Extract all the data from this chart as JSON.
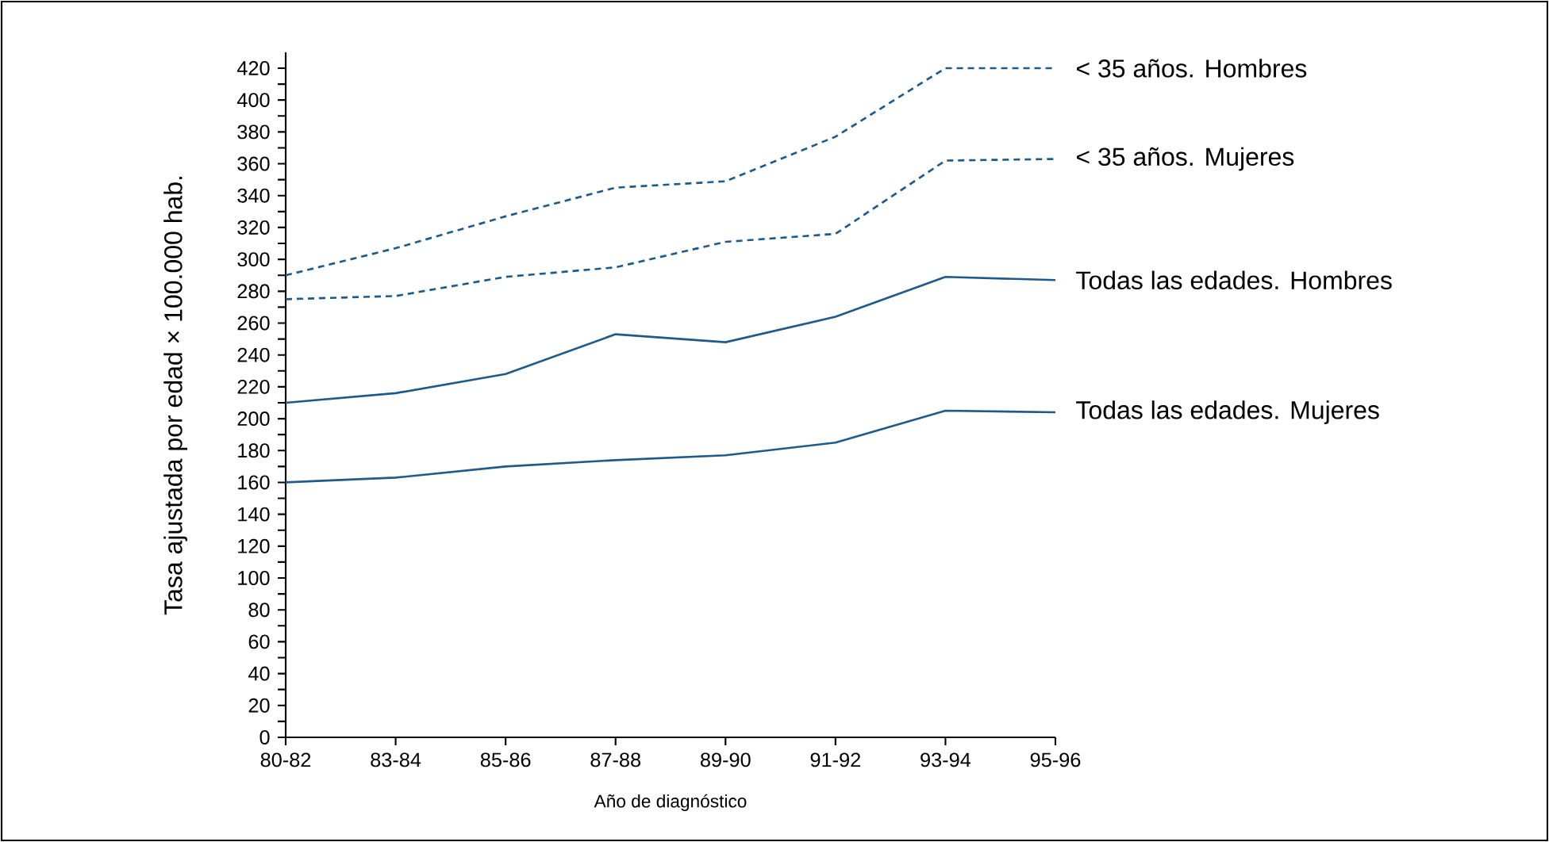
{
  "chart_data": {
    "type": "line",
    "xlabel": "Año de diagnóstico",
    "ylabel": "Tasa ajustada por edad × 100.000 hab.",
    "categories": [
      "80-82",
      "83-84",
      "85-86",
      "87-88",
      "89-90",
      "91-92",
      "93-94",
      "95-96"
    ],
    "ylim": [
      0,
      430
    ],
    "yticks": [
      0,
      20,
      40,
      60,
      80,
      100,
      120,
      140,
      160,
      180,
      200,
      220,
      240,
      260,
      280,
      300,
      320,
      340,
      360,
      380,
      400,
      420
    ],
    "grid": false,
    "legend": "right",
    "marker": "none",
    "series": [
      {
        "name": "< 35 años. Hombres",
        "color": "#1f5a8a",
        "line_style": "dashed",
        "values": [
          290,
          307,
          327,
          345,
          349,
          377,
          420,
          420
        ]
      },
      {
        "name": "< 35 años. Mujeres",
        "color": "#1f5a8a",
        "line_style": "dashed",
        "values": [
          275,
          277,
          289,
          295,
          311,
          316,
          362,
          363
        ]
      },
      {
        "name": "Todas las edades. Hombres",
        "color": "#1f5a8a",
        "line_style": "solid",
        "values": [
          210,
          216,
          228,
          253,
          248,
          264,
          289,
          287
        ]
      },
      {
        "name": "Todas las edades. Mujeres",
        "color": "#1f5a8a",
        "line_style": "solid",
        "values": [
          160,
          163,
          170,
          174,
          177,
          185,
          205,
          204
        ]
      }
    ]
  }
}
